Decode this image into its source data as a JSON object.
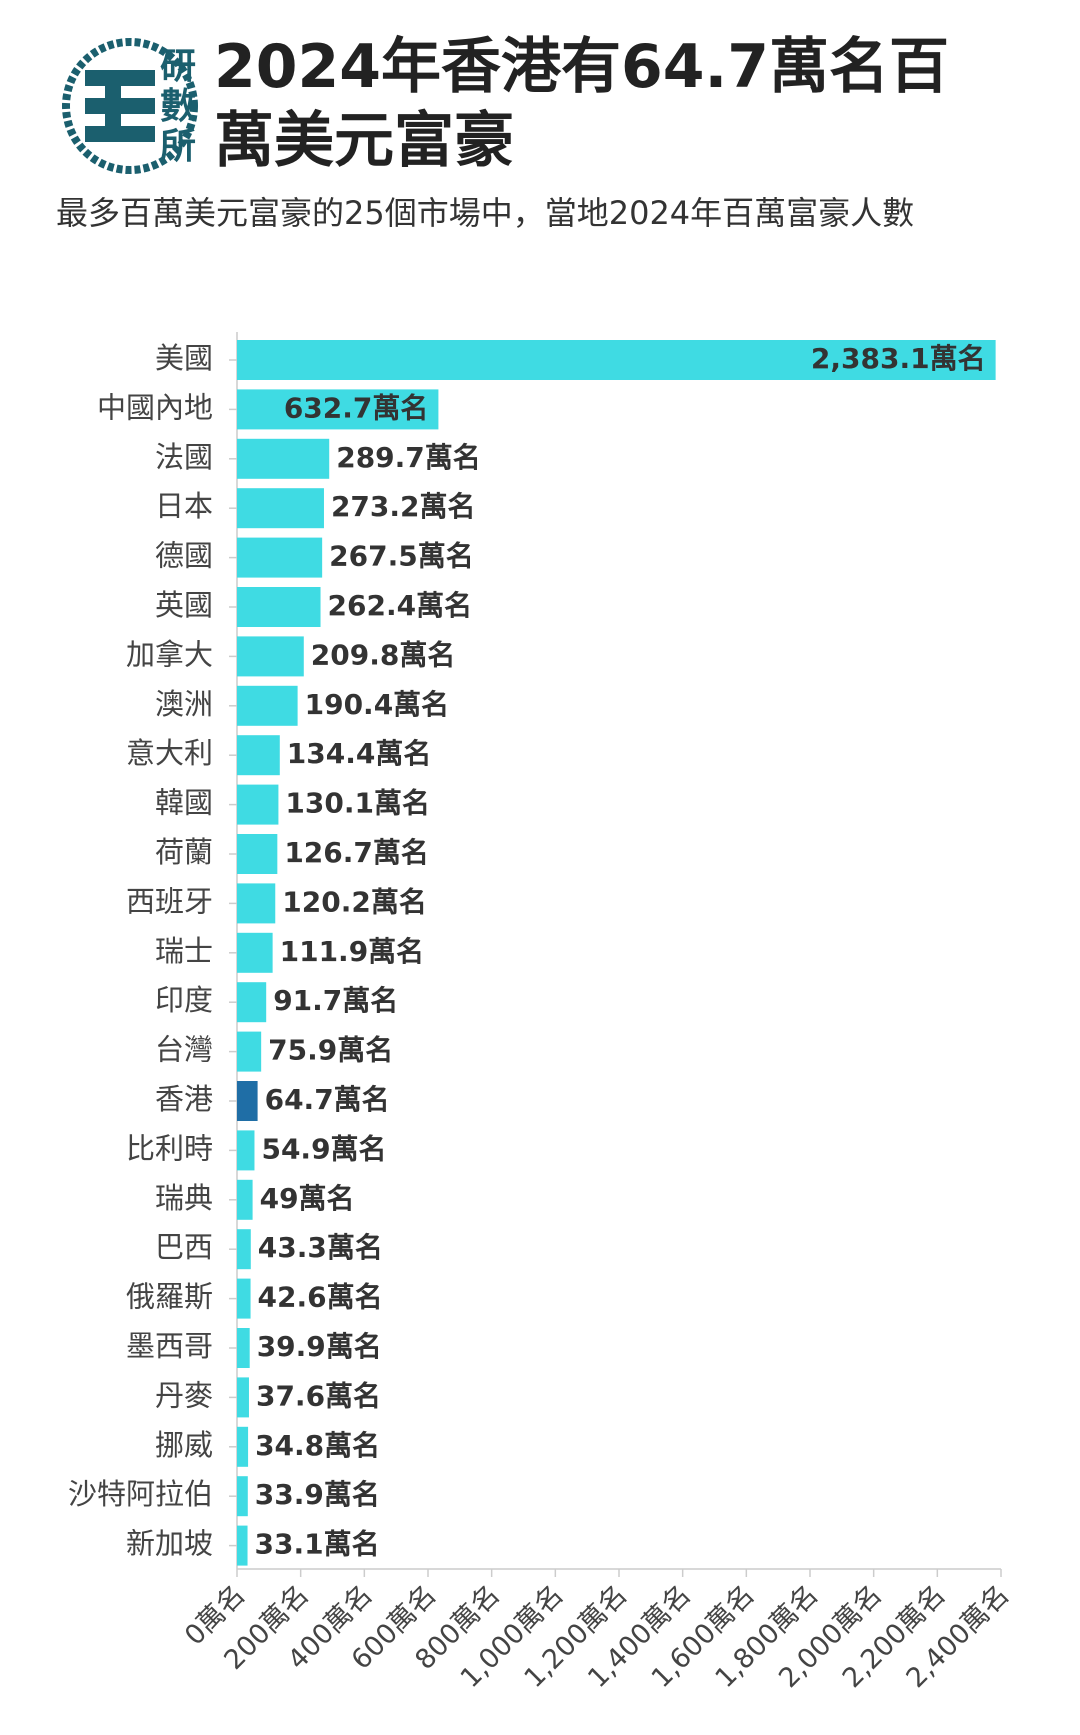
{
  "chart_data": {
    "type": "bar",
    "orientation": "horizontal",
    "logo": [
      "研",
      "數",
      "所"
    ],
    "title": "2024年香港有64.7萬名百萬美元富豪",
    "subtitle": "最多百萬美元富豪的25個市場中，當地2024年百萬富豪人數",
    "categories": [
      "美國",
      "中國內地",
      "法國",
      "日本",
      "德國",
      "英國",
      "加拿大",
      "澳洲",
      "意大利",
      "韓國",
      "荷蘭",
      "西班牙",
      "瑞士",
      "印度",
      "台灣",
      "香港",
      "比利時",
      "瑞典",
      "巴西",
      "俄羅斯",
      "墨西哥",
      "丹麥",
      "挪威",
      "沙特阿拉伯",
      "新加坡"
    ],
    "values": [
      2383.1,
      632.7,
      289.7,
      273.2,
      267.5,
      262.4,
      209.8,
      190.4,
      134.4,
      130.1,
      126.7,
      120.2,
      111.9,
      91.7,
      75.9,
      64.7,
      54.9,
      49,
      43.3,
      42.6,
      39.9,
      37.6,
      34.8,
      33.9,
      33.1
    ],
    "value_labels": [
      "2,383.1萬名",
      "632.7萬名",
      "289.7萬名",
      "273.2萬名",
      "267.5萬名",
      "262.4萬名",
      "209.8萬名",
      "190.4萬名",
      "134.4萬名",
      "130.1萬名",
      "126.7萬名",
      "120.2萬名",
      "111.9萬名",
      "91.7萬名",
      "75.9萬名",
      "64.7萬名",
      "54.9萬名",
      "49萬名",
      "43.3萬名",
      "42.6萬名",
      "39.9萬名",
      "37.6萬名",
      "34.8萬名",
      "33.9萬名",
      "33.1萬名"
    ],
    "colors": [
      "#3fdbe3",
      "#3fdbe3",
      "#3fdbe3",
      "#3fdbe3",
      "#3fdbe3",
      "#3fdbe3",
      "#3fdbe3",
      "#3fdbe3",
      "#3fdbe3",
      "#3fdbe3",
      "#3fdbe3",
      "#3fdbe3",
      "#3fdbe3",
      "#3fdbe3",
      "#3fdbe3",
      "#1f6ea6",
      "#3fdbe3",
      "#3fdbe3",
      "#3fdbe3",
      "#3fdbe3",
      "#3fdbe3",
      "#3fdbe3",
      "#3fdbe3",
      "#3fdbe3",
      "#3fdbe3"
    ],
    "xlim": [
      0,
      2400
    ],
    "xticks": [
      {
        "value": 0,
        "label": "0萬名"
      },
      {
        "value": 200,
        "label": "200萬名"
      },
      {
        "value": 400,
        "label": "400萬名"
      },
      {
        "value": 600,
        "label": "600萬名"
      },
      {
        "value": 800,
        "label": "800萬名"
      },
      {
        "value": 1000,
        "label": "1,000萬名"
      },
      {
        "value": 1200,
        "label": "1,200萬名"
      },
      {
        "value": 1400,
        "label": "1,400萬名"
      },
      {
        "value": 1600,
        "label": "1,600萬名"
      },
      {
        "value": 1800,
        "label": "1,800萬名"
      },
      {
        "value": 2000,
        "label": "2,000萬名"
      },
      {
        "value": 2200,
        "label": "2,200萬名"
      },
      {
        "value": 2400,
        "label": "2,400萬名"
      }
    ],
    "grid": false
  }
}
